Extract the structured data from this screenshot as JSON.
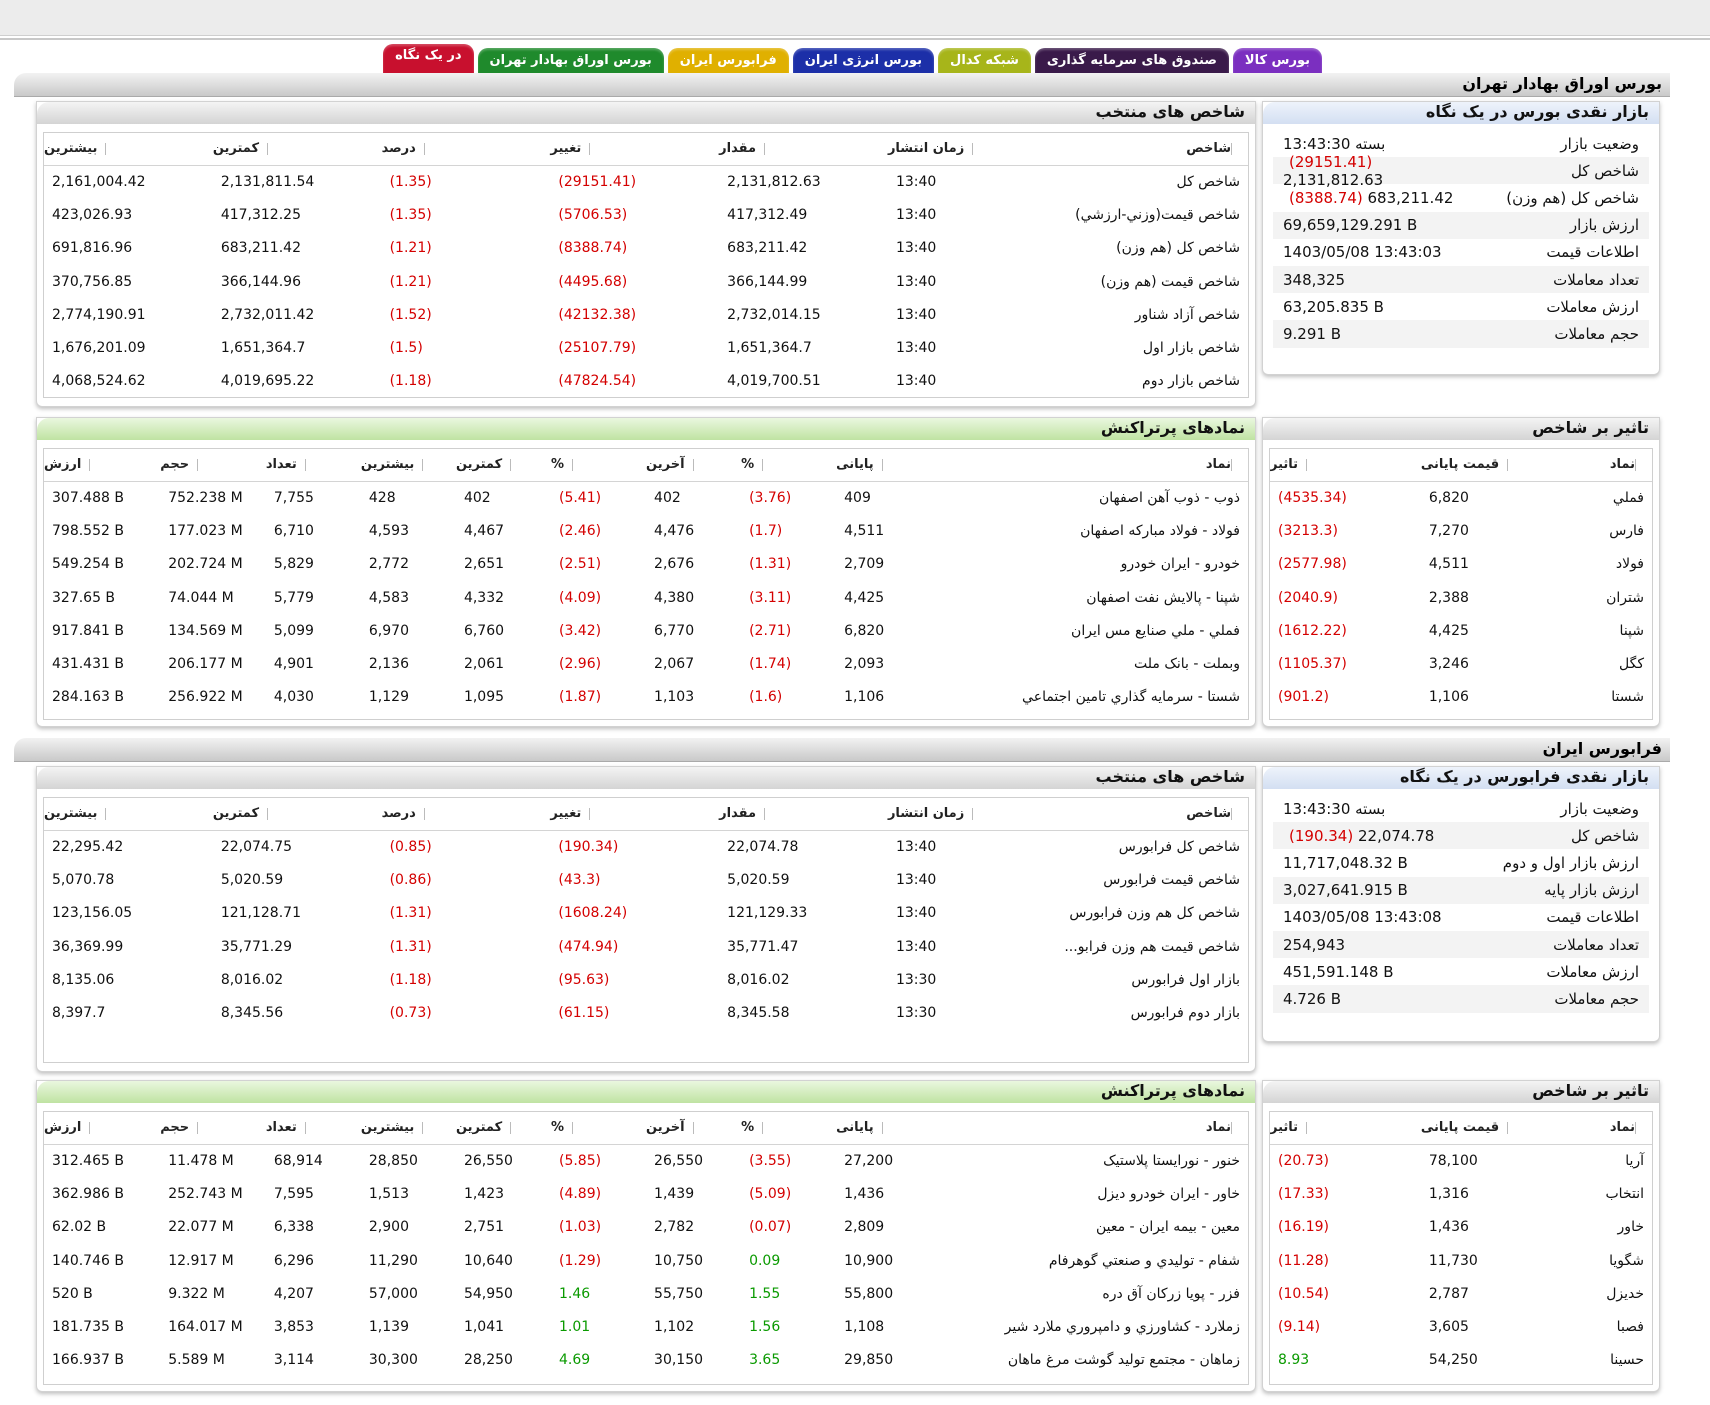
{
  "tabs": [
    {
      "label": "در یک نگاه",
      "color": "#c8102e"
    },
    {
      "label": "بورس اوراق بهادار تهران",
      "color": "#1f8a2c"
    },
    {
      "label": "فرابورس ایران",
      "color": "#e0b000"
    },
    {
      "label": "بورس انرژی ایران",
      "color": "#1c2fa8"
    },
    {
      "label": "شبکه کدال",
      "color": "#a7b51a"
    },
    {
      "label": "صندوق های سرمایه گذاری",
      "color": "#3a1a4a"
    },
    {
      "label": "بورس کالا",
      "color": "#7b2fc0"
    }
  ],
  "tse": {
    "title": "بورس اوراق بهادار تهران",
    "glance": {
      "title": "بازار نقدی بورس در یک نگاه",
      "rows": [
        {
          "k": "وضعیت بازار",
          "v": "بسته 13:43:30"
        },
        {
          "k": "شاخص کل",
          "v": "2,131,812.63",
          "chg": "(29151.41)"
        },
        {
          "k": "شاخص کل (هم وزن)",
          "v": "683,211.42",
          "chg": "(8388.74)"
        },
        {
          "k": "ارزش بازار",
          "v": "69,659,129.291 B"
        },
        {
          "k": "اطلاعات قیمت",
          "v": "1403/05/08 13:43:03"
        },
        {
          "k": "تعداد معاملات",
          "v": "348,325"
        },
        {
          "k": "ارزش معاملات",
          "v": "63,205.835 B"
        },
        {
          "k": "حجم معاملات",
          "v": "9.291 B"
        }
      ]
    },
    "indices": {
      "title": "شاخص های منتخب",
      "headers": [
        "شاخص",
        "زمان انتشار",
        "مقدار",
        "تغییر",
        "درصد",
        "کمترین",
        "بیشترین"
      ],
      "rows": [
        [
          "شاخص کل",
          "13:40",
          "2,131,812.63",
          "(29151.41)",
          "(1.35)",
          "2,131,811.54",
          "2,161,004.42"
        ],
        [
          "شاخص قیمت(وزني-ارزشي)",
          "13:40",
          "417,312.49",
          "(5706.53)",
          "(1.35)",
          "417,312.25",
          "423,026.93"
        ],
        [
          "شاخص کل (هم وزن)",
          "13:40",
          "683,211.42",
          "(8388.74)",
          "(1.21)",
          "683,211.42",
          "691,816.96"
        ],
        [
          "شاخص قیمت (هم وزن)",
          "13:40",
          "366,144.99",
          "(4495.68)",
          "(1.21)",
          "366,144.96",
          "370,756.85"
        ],
        [
          "شاخص آزاد شناور",
          "13:40",
          "2,732,014.15",
          "(42132.38)",
          "(1.52)",
          "2,732,011.42",
          "2,774,190.91"
        ],
        [
          "شاخص بازار اول",
          "13:40",
          "1,651,364.7",
          "(25107.79)",
          "(1.5)",
          "1,651,364.7",
          "1,676,201.09"
        ],
        [
          "شاخص بازار دوم",
          "13:40",
          "4,019,700.51",
          "(47824.54)",
          "(1.18)",
          "4,019,695.22",
          "4,068,524.62"
        ]
      ]
    },
    "impact": {
      "title": "تاثیر بر شاخص",
      "headers": [
        "نماد",
        "قیمت پایانی",
        "تاثیر"
      ],
      "rows": [
        [
          "فملي",
          "6,820",
          "(4535.34)"
        ],
        [
          "فارس",
          "7,270",
          "(3213.3)"
        ],
        [
          "فولاد",
          "4,511",
          "(2577.98)"
        ],
        [
          "شتران",
          "2,388",
          "(2040.9)"
        ],
        [
          "شپنا",
          "4,425",
          "(1612.22)"
        ],
        [
          "کگل",
          "3,246",
          "(1105.37)"
        ],
        [
          "شستا",
          "1,106",
          "(901.2)"
        ]
      ]
    },
    "active": {
      "title": "نمادهای پرتراکنش",
      "headers": [
        "نماد",
        "پایانی",
        "%",
        "آخرین",
        "%",
        "کمترین",
        "بیشترین",
        "تعداد",
        "حجم",
        "ارزش"
      ],
      "rows": [
        [
          "ذوب - ذوب آهن اصفهان",
          "409",
          "(3.76)",
          "402",
          "(5.41)",
          "402",
          "428",
          "7,755",
          "752.238 M",
          "307.488 B"
        ],
        [
          "فولاد - فولاد مبارکه اصفهان",
          "4,511",
          "(1.7)",
          "4,476",
          "(2.46)",
          "4,467",
          "4,593",
          "6,710",
          "177.023 M",
          "798.552 B"
        ],
        [
          "خودرو - ایران خودرو",
          "2,709",
          "(1.31)",
          "2,676",
          "(2.51)",
          "2,651",
          "2,772",
          "5,829",
          "202.724 M",
          "549.254 B"
        ],
        [
          "شپنا - پالایش نفت اصفهان",
          "4,425",
          "(3.11)",
          "4,380",
          "(4.09)",
          "4,332",
          "4,583",
          "5,779",
          "74.044 M",
          "327.65 B"
        ],
        [
          "فملي - ملي صنایع مس ایران",
          "6,820",
          "(2.71)",
          "6,770",
          "(3.42)",
          "6,760",
          "6,970",
          "5,099",
          "134.569 M",
          "917.841 B"
        ],
        [
          "وبملت - بانک ملت",
          "2,093",
          "(1.74)",
          "2,067",
          "(2.96)",
          "2,061",
          "2,136",
          "4,901",
          "206.177 M",
          "431.431 B"
        ],
        [
          "شستا - سرمایه گذاري تامین اجتماعي",
          "1,106",
          "(1.6)",
          "1,103",
          "(1.87)",
          "1,095",
          "1,129",
          "4,030",
          "256.922 M",
          "284.163 B"
        ]
      ]
    }
  },
  "ifb": {
    "title": "فرابورس ایران",
    "glance": {
      "title": "بازار نقدی فرابورس در یک نگاه",
      "rows": [
        {
          "k": "وضعیت بازار",
          "v": "بسته 13:43:30"
        },
        {
          "k": "شاخص کل",
          "v": "22,074.78",
          "chg": "(190.34)"
        },
        {
          "k": "ارزش بازار اول و دوم",
          "v": "11,717,048.32 B"
        },
        {
          "k": "ارزش بازار پایه",
          "v": "3,027,641.915 B"
        },
        {
          "k": "اطلاعات قیمت",
          "v": "1403/05/08 13:43:08"
        },
        {
          "k": "تعداد معاملات",
          "v": "254,943"
        },
        {
          "k": "ارزش معاملات",
          "v": "451,591.148 B"
        },
        {
          "k": "حجم معاملات",
          "v": "4.726 B"
        }
      ]
    },
    "indices": {
      "title": "شاخص های منتخب",
      "headers": [
        "شاخص",
        "زمان انتشار",
        "مقدار",
        "تغییر",
        "درصد",
        "کمترین",
        "بیشترین"
      ],
      "rows": [
        [
          "شاخص کل فرابورس",
          "13:40",
          "22,074.78",
          "(190.34)",
          "(0.85)",
          "22,074.75",
          "22,295.42"
        ],
        [
          "شاخص قیمت فرابورس",
          "13:40",
          "5,020.59",
          "(43.3)",
          "(0.86)",
          "5,020.59",
          "5,070.78"
        ],
        [
          "شاخص کل هم وزن فرابورس",
          "13:40",
          "121,129.33",
          "(1608.24)",
          "(1.31)",
          "121,128.71",
          "123,156.05"
        ],
        [
          "شاخص قیمت هم وزن فرابو...",
          "13:40",
          "35,771.47",
          "(474.94)",
          "(1.31)",
          "35,771.29",
          "36,369.99"
        ],
        [
          "بازار اول فرابورس",
          "13:30",
          "8,016.02",
          "(95.63)",
          "(1.18)",
          "8,016.02",
          "8,135.06"
        ],
        [
          "بازار دوم فرابورس",
          "13:30",
          "8,345.58",
          "(61.15)",
          "(0.73)",
          "8,345.56",
          "8,397.7"
        ]
      ]
    },
    "impact": {
      "title": "تاثیر بر شاخص",
      "headers": [
        "نماد",
        "قیمت پایانی",
        "تاثیر"
      ],
      "rows": [
        [
          "آریا",
          "78,100",
          "(20.73)"
        ],
        [
          "انتخاب",
          "1,316",
          "(17.33)"
        ],
        [
          "خاور",
          "1,436",
          "(16.19)"
        ],
        [
          "شگویا",
          "11,730",
          "(11.28)"
        ],
        [
          "خدیزل",
          "2,787",
          "(10.54)"
        ],
        [
          "فصبا",
          "3,605",
          "(9.14)"
        ],
        [
          "حسینا",
          "54,250",
          "8.93"
        ]
      ]
    },
    "active": {
      "title": "نمادهای پرتراکنش",
      "headers": [
        "نماد",
        "پایانی",
        "%",
        "آخرین",
        "%",
        "کمترین",
        "بیشترین",
        "تعداد",
        "حجم",
        "ارزش"
      ],
      "rows": [
        [
          "خنور - نورایستا پلاستیک",
          "27,200",
          "(3.55)",
          "26,550",
          "(5.85)",
          "26,550",
          "28,850",
          "68,914",
          "11.478 M",
          "312.465 B"
        ],
        [
          "خاور - ایران خودرو دیزل",
          "1,436",
          "(5.09)",
          "1,439",
          "(4.89)",
          "1,423",
          "1,513",
          "7,595",
          "252.743 M",
          "362.986 B"
        ],
        [
          "معین - بیمه ایران - معین",
          "2,809",
          "(0.07)",
          "2,782",
          "(1.03)",
          "2,751",
          "2,900",
          "6,338",
          "22.077 M",
          "62.02 B"
        ],
        [
          "شفام - تولیدي و صنعتي گوهرفام",
          "10,900",
          "0.09",
          "10,750",
          "(1.29)",
          "10,640",
          "11,290",
          "6,296",
          "12.917 M",
          "140.746 B"
        ],
        [
          "فزر - پویا زرکان آق دره",
          "55,800",
          "1.55",
          "55,750",
          "1.46",
          "54,950",
          "57,000",
          "4,207",
          "9.322 M",
          "520 B"
        ],
        [
          "زملارد - کشاورزي و دامپروري ملارد شیر",
          "1,108",
          "1.56",
          "1,102",
          "1.01",
          "1,041",
          "1,139",
          "3,853",
          "164.017 M",
          "181.735 B"
        ],
        [
          "زماهان - مجتمع تولید گوشت مرغ ماهان",
          "29,850",
          "3.65",
          "30,150",
          "4.69",
          "28,250",
          "30,300",
          "3,114",
          "5.589 M",
          "166.937 B"
        ]
      ]
    }
  }
}
